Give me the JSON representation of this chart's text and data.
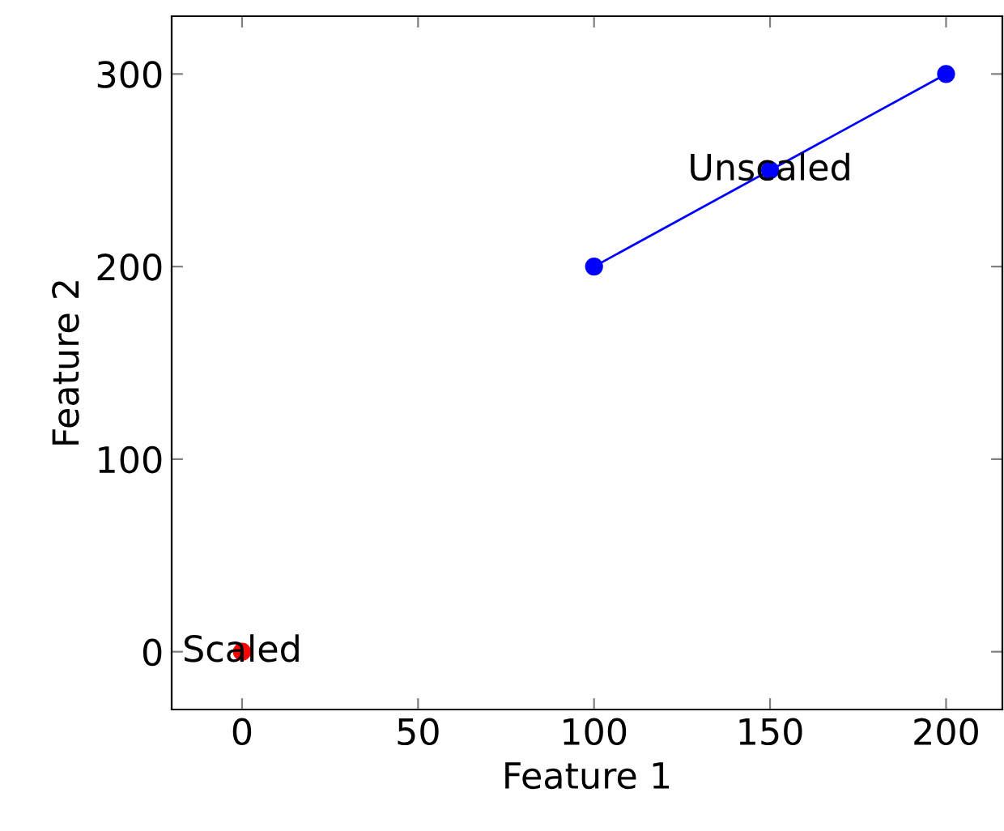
{
  "chart_data": {
    "type": "line",
    "xlabel": "Feature 1",
    "ylabel": "Feature 2",
    "xlim": [
      -20,
      216
    ],
    "ylim": [
      -30,
      330
    ],
    "xticks": [
      0,
      50,
      100,
      150,
      200
    ],
    "yticks": [
      0,
      100,
      200,
      300
    ],
    "grid": false,
    "marker": "circle",
    "line_style": "solid",
    "series": [
      {
        "color": "#0000ff",
        "x": [
          100,
          150,
          200
        ],
        "values": [
          200,
          250,
          300
        ]
      },
      {
        "type": "scatter",
        "color": "#ff0000",
        "x": [
          0
        ],
        "values": [
          0
        ]
      }
    ],
    "annotations": [
      {
        "text": "Unscaled",
        "x": 150,
        "y": 250
      },
      {
        "text": "Scaled",
        "x": 0,
        "y": 0
      }
    ]
  }
}
